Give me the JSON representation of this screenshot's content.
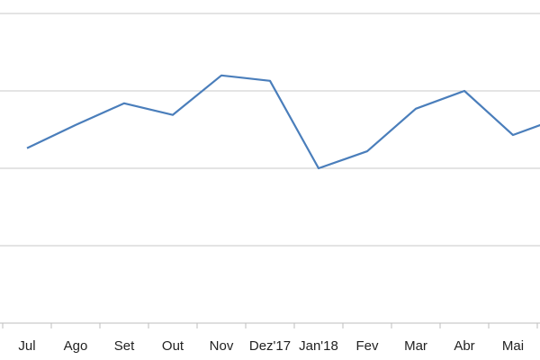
{
  "chart_data": {
    "type": "line",
    "title": "",
    "xlabel": "",
    "ylabel": "",
    "categories": [
      "Jul",
      "Ago",
      "Set",
      "Out",
      "Nov",
      "Dez'17",
      "Jan'18",
      "Fev",
      "Mar",
      "Abr",
      "Mai",
      ""
    ],
    "series": [
      {
        "values": [
          2.26,
          2.56,
          2.84,
          2.69,
          3.2,
          3.13,
          2.0,
          2.22,
          2.77,
          3.0,
          2.43,
          2.66
        ],
        "color": "#4a7ebb"
      }
    ],
    "ylim": [
      0,
      4
    ],
    "grid": true,
    "gridline_color": "#c8c8c8",
    "legend": "none"
  }
}
